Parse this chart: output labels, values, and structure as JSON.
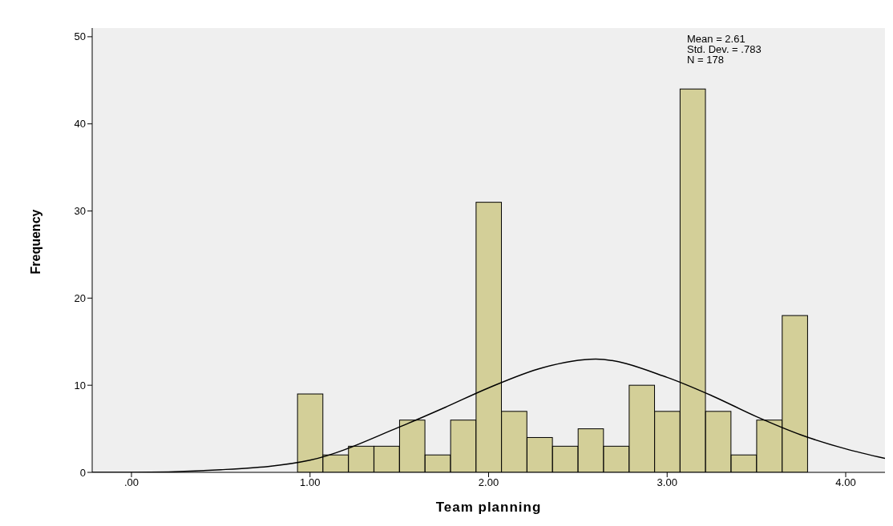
{
  "chart_data": {
    "type": "histogram",
    "xlabel": "Team planning",
    "ylabel": "Frequency",
    "bins": [
      0.929,
      1.071,
      1.214,
      1.357,
      1.5,
      1.643,
      1.786,
      1.929,
      2.071,
      2.214,
      2.357,
      2.5,
      2.643,
      2.786,
      2.929,
      3.071,
      3.214,
      3.357,
      3.5,
      3.643,
      3.786
    ],
    "values": [
      9,
      2,
      3,
      3,
      6,
      2,
      6,
      31,
      7,
      4,
      3,
      5,
      3,
      10,
      7,
      44,
      7,
      2,
      6,
      18
    ],
    "color": "#d3cf98",
    "series": [
      {
        "type": "line",
        "color": "#000000",
        "x": [
          -0.22,
          0,
          0.5,
          1,
          1.5,
          1.75,
          2,
          2.3,
          2.6,
          3,
          3.25,
          3.5,
          3.75,
          4,
          4.22
        ],
        "values": [
          0,
          0,
          0.3,
          1.4,
          5.2,
          7.4,
          9.7,
          12,
          13,
          10.9,
          8.8,
          6.4,
          4.3,
          2.7,
          1.6
        ]
      }
    ],
    "annotations": [
      "Mean = 2.61",
      "Std. Dev. = .783",
      "N = 178"
    ],
    "xlim": [
      -0.22,
      4.22
    ],
    "xticks": [
      {
        "value": 0,
        "label": ".00"
      },
      {
        "value": 1,
        "label": "1.00"
      },
      {
        "value": 2,
        "label": "2.00"
      },
      {
        "value": 3,
        "label": "3.00"
      },
      {
        "value": 4,
        "label": "4.00"
      }
    ],
    "ylim": [
      0,
      51
    ],
    "yticks": [
      0,
      10,
      20,
      30,
      40,
      50
    ],
    "grid": false
  }
}
